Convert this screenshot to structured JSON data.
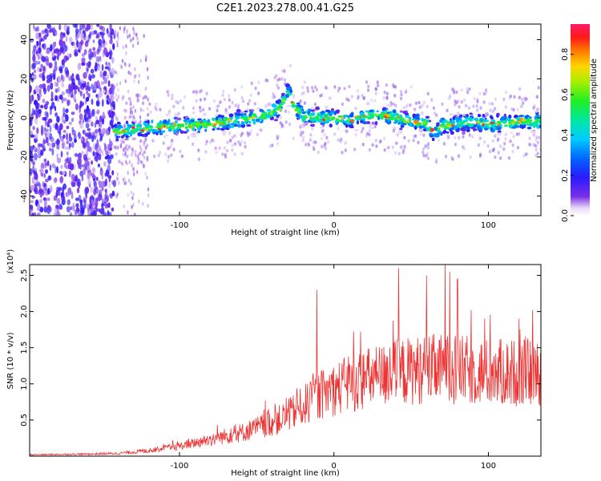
{
  "title": "C2E1.2023.278.00.41.G25",
  "chart_data": [
    {
      "type": "heatmap",
      "xlabel": "Height of straight line (km)",
      "ylabel": "Frequency (Hz)",
      "xlim": [
        -197,
        134
      ],
      "ylim": [
        -50,
        48
      ],
      "xticks": [
        -100,
        0,
        100
      ],
      "yticks": [
        -40,
        -20,
        0,
        20,
        40
      ],
      "colorbar": {
        "label": "Normalized spectral amplitude",
        "range": [
          0.0,
          0.95
        ],
        "ticks": [
          "0.0",
          "0.2",
          "0.4",
          "0.6",
          "0.8"
        ]
      },
      "ridge": {
        "x": [
          -143,
          -120,
          -100,
          -80,
          -60,
          -45,
          -35,
          -30,
          -25,
          -20,
          -10,
          0,
          10,
          20,
          30,
          40,
          50,
          60,
          65,
          70,
          80,
          90,
          100,
          110,
          120,
          134
        ],
        "y": [
          -7,
          -5,
          -4,
          -3,
          -1,
          1,
          5,
          14,
          5,
          1,
          0,
          0,
          -1,
          1,
          2,
          0,
          -2,
          -3,
          -8,
          -4,
          -3,
          -2,
          -3,
          -3,
          -2,
          -2
        ]
      }
    },
    {
      "type": "line",
      "xlabel": "Height of straight line (km)",
      "ylabel": "SNR (10 * v/v)",
      "y_multiplier": "(x10⁴)",
      "xlim": [
        -197,
        134
      ],
      "ylim": [
        0,
        2.65
      ],
      "xticks": [
        -100,
        0,
        100
      ],
      "yticks": [
        "0.5",
        "1.0",
        "1.5",
        "2.0",
        "2.5"
      ],
      "color": "#ee3333",
      "envelope": {
        "x": [
          -197,
          -160,
          -140,
          -120,
          -100,
          -80,
          -60,
          -40,
          -30,
          -20,
          -10,
          0,
          20,
          40,
          60,
          80,
          100,
          120,
          134
        ],
        "y": [
          0.02,
          0.03,
          0.04,
          0.08,
          0.15,
          0.25,
          0.35,
          0.5,
          0.6,
          0.75,
          0.9,
          1.0,
          1.15,
          1.25,
          1.3,
          1.3,
          1.25,
          1.25,
          1.25
        ]
      },
      "peaks": {
        "x": [
          -11,
          42,
          60,
          72,
          75,
          80
        ],
        "y": [
          2.3,
          2.6,
          2.5,
          2.65,
          2.55,
          2.45
        ]
      }
    }
  ],
  "tick_labels": {
    "x": [
      "-100",
      "0",
      "100"
    ],
    "y_top": [
      "-40",
      "-20",
      "0",
      "20",
      "40"
    ],
    "y_bottom": [
      "0.5",
      "1.0",
      "1.5",
      "2.0",
      "2.5"
    ]
  }
}
